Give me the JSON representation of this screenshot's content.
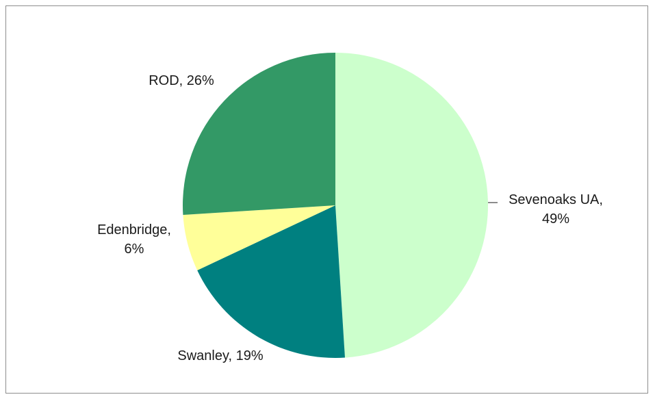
{
  "chart_data": {
    "type": "pie",
    "title": "",
    "start_angle_deg": 0,
    "direction": "clockwise",
    "slices": [
      {
        "name": "Sevenoaks UA",
        "value": 49,
        "label_lines": [
          "Sevenoaks UA,",
          "49%"
        ],
        "color": "#ccffcc"
      },
      {
        "name": "Swanley",
        "value": 19,
        "label_lines": [
          "Swanley, 19%"
        ],
        "color": "#008080"
      },
      {
        "name": "Edenbridge",
        "value": 6,
        "label_lines": [
          "Edenbridge,",
          "6%"
        ],
        "color": "#ffff99"
      },
      {
        "name": "ROD",
        "value": 26,
        "label_lines": [
          "ROD, 26%"
        ],
        "color": "#339966"
      }
    ]
  }
}
